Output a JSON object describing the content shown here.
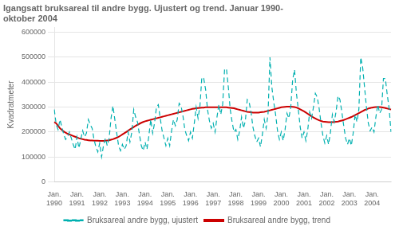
{
  "chart_data": {
    "type": "line",
    "title": [
      "Igangsatt bruksareal til andre bygg. Ujustert og trend. Januar 1990-",
      "oktober 2004"
    ],
    "ylabel": "Kvadratmeter",
    "categories": [
      "Jan. 1990",
      null,
      null,
      null,
      null,
      null,
      null,
      null,
      null,
      null,
      null,
      null,
      "Jan. 1991",
      null,
      null,
      null,
      null,
      null,
      null,
      null,
      null,
      null,
      null,
      null,
      "Jan. 1992",
      null,
      null,
      null,
      null,
      null,
      null,
      null,
      null,
      null,
      null,
      null,
      "Jan. 1993",
      null,
      null,
      null,
      null,
      null,
      null,
      null,
      null,
      null,
      null,
      null,
      "Jan. 1994",
      null,
      null,
      null,
      null,
      null,
      null,
      null,
      null,
      null,
      null,
      null,
      "Jan. 1995",
      null,
      null,
      null,
      null,
      null,
      null,
      null,
      null,
      null,
      null,
      null,
      "Jan. 1996",
      null,
      null,
      null,
      null,
      null,
      null,
      null,
      null,
      null,
      null,
      null,
      "Jan. 1997",
      null,
      null,
      null,
      null,
      null,
      null,
      null,
      null,
      null,
      null,
      null,
      "Jan. 1998",
      null,
      null,
      null,
      null,
      null,
      null,
      null,
      null,
      null,
      null,
      null,
      "Jan. 1999",
      null,
      null,
      null,
      null,
      null,
      null,
      null,
      null,
      null,
      null,
      null,
      "Jan. 2000",
      null,
      null,
      null,
      null,
      null,
      null,
      null,
      null,
      null,
      null,
      null,
      "Jan. 2001",
      null,
      null,
      null,
      null,
      null,
      null,
      null,
      null,
      null,
      null,
      null,
      "Jan. 2002",
      null,
      null,
      null,
      null,
      null,
      null,
      null,
      null,
      null,
      null,
      null,
      "Jan. 2003",
      null,
      null,
      null,
      null,
      null,
      null,
      null,
      null,
      null,
      null,
      null,
      "Jan. 2004",
      null,
      null,
      null,
      null,
      null,
      null,
      null,
      null,
      null,
      null
    ],
    "series": [
      {
        "name": "Bruksareal andre bygg, ujustert",
        "color": "#00b0b0",
        "line_style": "dashed",
        "values": [
          290000,
          230000,
          210000,
          250000,
          220000,
          190000,
          170000,
          180000,
          200000,
          175000,
          150000,
          130000,
          180000,
          135000,
          170000,
          205000,
          180000,
          195000,
          250000,
          230000,
          215000,
          170000,
          140000,
          120000,
          155000,
          100000,
          145000,
          175000,
          145000,
          175000,
          255000,
          305000,
          250000,
          195000,
          145000,
          125000,
          150000,
          130000,
          145000,
          200000,
          160000,
          200000,
          290000,
          260000,
          240000,
          190000,
          145000,
          125000,
          160000,
          130000,
          185000,
          250000,
          195000,
          235000,
          300000,
          310000,
          255000,
          205000,
          175000,
          145000,
          175000,
          145000,
          205000,
          250000,
          225000,
          250000,
          315000,
          305000,
          265000,
          210000,
          185000,
          165000,
          200000,
          175000,
          235000,
          300000,
          255000,
          305000,
          420000,
          415000,
          370000,
          290000,
          245000,
          215000,
          235000,
          200000,
          260000,
          310000,
          270000,
          310000,
          450000,
          455000,
          380000,
          290000,
          240000,
          200000,
          210000,
          170000,
          205000,
          260000,
          215000,
          245000,
          330000,
          320000,
          280000,
          220000,
          185000,
          160000,
          175000,
          140000,
          190000,
          250000,
          215000,
          275000,
          500000,
          380000,
          320000,
          270000,
          205000,
          170000,
          200000,
          165000,
          210000,
          275000,
          255000,
          300000,
          410000,
          450000,
          355000,
          290000,
          220000,
          175000,
          200000,
          165000,
          210000,
          280000,
          255000,
          300000,
          355000,
          340000,
          295000,
          235000,
          185000,
          155000,
          185000,
          150000,
          200000,
          270000,
          240000,
          285000,
          345000,
          330000,
          280000,
          225000,
          175000,
          150000,
          175000,
          145000,
          195000,
          270000,
          240000,
          290000,
          500000,
          460000,
          380000,
          300000,
          235000,
          205000,
          220000,
          200000,
          260000,
          310000,
          275000,
          290000,
          415000,
          415000,
          350000,
          295000,
          200000
        ]
      },
      {
        "name": "Bruksareal andre bygg, trend",
        "color": "#cc0000",
        "line_style": "solid",
        "values": [
          240000,
          235000,
          225000,
          215000,
          208000,
          202000,
          197000,
          193000,
          190000,
          187000,
          184000,
          181000,
          178000,
          175000,
          173000,
          171000,
          169000,
          168000,
          167000,
          166000,
          166000,
          165000,
          165000,
          165000,
          164000,
          164000,
          164000,
          165000,
          166000,
          167000,
          169000,
          171000,
          174000,
          177000,
          181000,
          185000,
          190000,
          195000,
          200000,
          205000,
          210000,
          215000,
          220000,
          225000,
          229000,
          233000,
          237000,
          240000,
          243000,
          245000,
          247000,
          249000,
          251000,
          253000,
          255000,
          257000,
          259000,
          261000,
          263000,
          265000,
          267000,
          269000,
          271000,
          273000,
          275000,
          277000,
          279000,
          281000,
          283000,
          285000,
          287000,
          289000,
          291000,
          293000,
          294000,
          295000,
          296000,
          297000,
          298000,
          298000,
          299000,
          299000,
          299000,
          299000,
          299000,
          299000,
          299000,
          299000,
          299000,
          299000,
          299000,
          299000,
          298000,
          297000,
          296000,
          295000,
          293000,
          291000,
          289000,
          287000,
          285000,
          283000,
          281000,
          280000,
          279000,
          278000,
          278000,
          278000,
          278000,
          279000,
          280000,
          281000,
          283000,
          285000,
          287000,
          289000,
          291000,
          293000,
          295000,
          297000,
          299000,
          300000,
          301000,
          302000,
          302000,
          302000,
          301000,
          300000,
          298000,
          295000,
          291000,
          287000,
          283000,
          278000,
          273000,
          268000,
          263000,
          258000,
          254000,
          250000,
          247000,
          244000,
          242000,
          241000,
          240000,
          239000,
          239000,
          239000,
          240000,
          241000,
          242000,
          244000,
          246000,
          248000,
          251000,
          254000,
          257000,
          260000,
          264000,
          268000,
          272000,
          276000,
          280000,
          284000,
          288000,
          291000,
          294000,
          296000,
          298000,
          299000,
          300000,
          300000,
          300000,
          299000,
          298000,
          296000,
          294000,
          292000,
          290000
        ]
      }
    ],
    "ylim": [
      0,
      620000
    ],
    "yticks": [
      0,
      100000,
      200000,
      300000,
      400000,
      500000,
      600000
    ],
    "grid": true,
    "legend": "bottom"
  }
}
